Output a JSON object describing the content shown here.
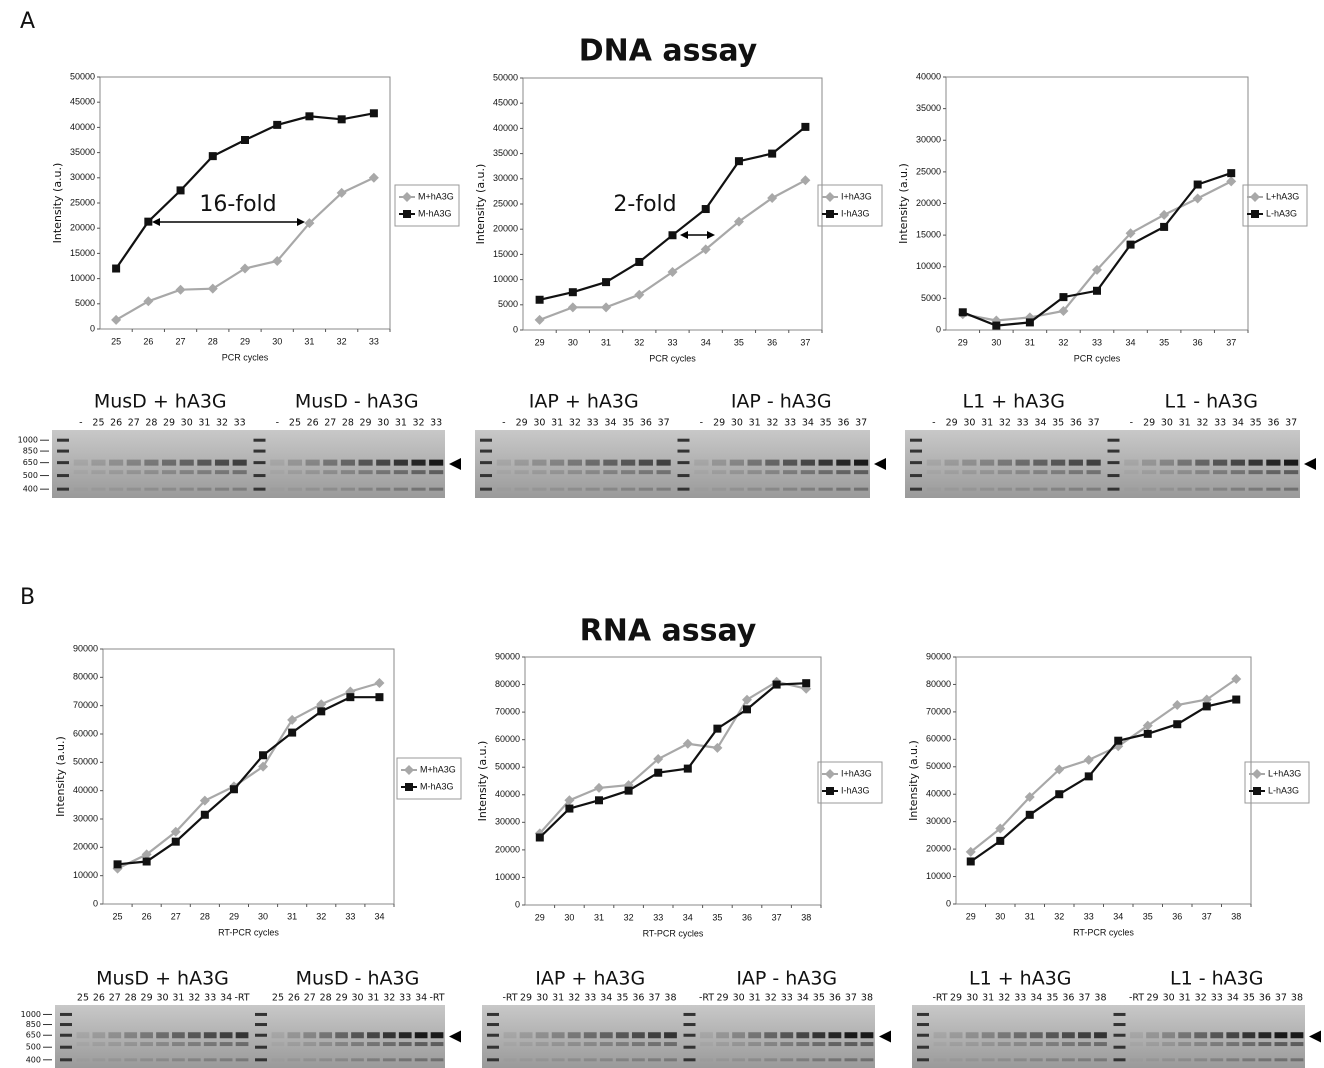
{
  "panels": [
    {
      "label": "A",
      "title": "DNA assay"
    },
    {
      "label": "B",
      "title": "RNA assay"
    }
  ],
  "chart_data": [
    {
      "type": "line",
      "categories": [
        "25",
        "26",
        "27",
        "28",
        "29",
        "30",
        "31",
        "32",
        "33"
      ],
      "x_label": "PCR cycles",
      "y_label": "Intensity (a.u.)",
      "ylim": [
        0,
        50000
      ],
      "yticks": [
        0,
        5000,
        10000,
        15000,
        20000,
        25000,
        30000,
        35000,
        40000,
        45000,
        50000
      ],
      "annotation": "16-fold",
      "series": [
        {
          "name": "M+hA3G",
          "color": "#a8a8a8",
          "marker": "diamond",
          "values": [
            1800,
            5500,
            7800,
            8000,
            12000,
            13500,
            21000,
            27000,
            30000
          ]
        },
        {
          "name": "M-hA3G",
          "color": "#111111",
          "marker": "square",
          "values": [
            12000,
            21300,
            27500,
            34300,
            37500,
            40500,
            42200,
            41600,
            42800
          ]
        }
      ]
    },
    {
      "type": "line",
      "categories": [
        "29",
        "30",
        "31",
        "32",
        "33",
        "34",
        "35",
        "36",
        "37"
      ],
      "x_label": "PCR cycles",
      "y_label": "Intensity (a.u.)",
      "ylim": [
        0,
        50000
      ],
      "yticks": [
        0,
        5000,
        10000,
        15000,
        20000,
        25000,
        30000,
        35000,
        40000,
        45000,
        50000
      ],
      "annotation": "2-fold",
      "series": [
        {
          "name": "I+hA3G",
          "color": "#a8a8a8",
          "marker": "diamond",
          "values": [
            2000,
            4500,
            4500,
            7000,
            11500,
            16000,
            21500,
            26200,
            29700
          ]
        },
        {
          "name": "I-hA3G",
          "color": "#111111",
          "marker": "square",
          "values": [
            6000,
            7500,
            9500,
            13500,
            18800,
            24000,
            33500,
            35000,
            40300
          ]
        }
      ]
    },
    {
      "type": "line",
      "categories": [
        "29",
        "30",
        "31",
        "32",
        "33",
        "34",
        "35",
        "36",
        "37"
      ],
      "x_label": "PCR cycles",
      "y_label": "Intensity (a.u.)",
      "ylim": [
        0,
        40000
      ],
      "yticks": [
        0,
        5000,
        10000,
        15000,
        20000,
        25000,
        30000,
        35000,
        40000
      ],
      "series": [
        {
          "name": "L+hA3G",
          "color": "#a8a8a8",
          "marker": "diamond",
          "values": [
            2500,
            1500,
            2000,
            3000,
            9500,
            15300,
            18200,
            20800,
            23500
          ]
        },
        {
          "name": "L-hA3G",
          "color": "#111111",
          "marker": "square",
          "values": [
            2800,
            700,
            1200,
            5200,
            6200,
            13500,
            16300,
            23000,
            24800
          ]
        }
      ]
    },
    {
      "type": "line",
      "categories": [
        "25",
        "26",
        "27",
        "28",
        "29",
        "30",
        "31",
        "32",
        "33",
        "34"
      ],
      "x_label": "RT-PCR cycles",
      "y_label": "Intensity (a.u.)",
      "ylim": [
        0,
        90000
      ],
      "yticks": [
        0,
        10000,
        20000,
        30000,
        40000,
        50000,
        60000,
        70000,
        80000,
        90000
      ],
      "series": [
        {
          "name": "M+hA3G",
          "color": "#a8a8a8",
          "marker": "diamond",
          "values": [
            12500,
            17500,
            25500,
            36500,
            41500,
            48500,
            65000,
            70500,
            75000,
            78000
          ]
        },
        {
          "name": "M-hA3G",
          "color": "#111111",
          "marker": "square",
          "values": [
            14000,
            15000,
            22000,
            31500,
            40500,
            52500,
            60500,
            68000,
            73000,
            73000
          ]
        }
      ]
    },
    {
      "type": "line",
      "categories": [
        "29",
        "30",
        "31",
        "32",
        "33",
        "34",
        "35",
        "36",
        "37",
        "38"
      ],
      "x_label": "RT-PCR cycles",
      "y_label": "Intensity (a.u.)",
      "ylim": [
        0,
        90000
      ],
      "yticks": [
        0,
        10000,
        20000,
        30000,
        40000,
        50000,
        60000,
        70000,
        80000,
        90000
      ],
      "series": [
        {
          "name": "I+hA3G",
          "color": "#a8a8a8",
          "marker": "diamond",
          "values": [
            26000,
            38000,
            42500,
            43500,
            53000,
            58500,
            57000,
            74500,
            81000,
            78500
          ]
        },
        {
          "name": "I-hA3G",
          "color": "#111111",
          "marker": "square",
          "values": [
            24500,
            35000,
            38000,
            41500,
            48000,
            49500,
            64000,
            71000,
            80000,
            80500
          ]
        }
      ]
    },
    {
      "type": "line",
      "categories": [
        "29",
        "30",
        "31",
        "32",
        "33",
        "34",
        "35",
        "36",
        "37",
        "38"
      ],
      "x_label": "RT-PCR cycles",
      "y_label": "Intensity (a.u.)",
      "ylim": [
        0,
        90000
      ],
      "yticks": [
        0,
        10000,
        20000,
        30000,
        40000,
        50000,
        60000,
        70000,
        80000,
        90000
      ],
      "series": [
        {
          "name": "L+hA3G",
          "color": "#a8a8a8",
          "marker": "diamond",
          "values": [
            19000,
            27500,
            39000,
            49000,
            52500,
            57500,
            65000,
            72500,
            74500,
            82000
          ]
        },
        {
          "name": "L-hA3G",
          "color": "#111111",
          "marker": "square",
          "values": [
            15500,
            23000,
            32500,
            40000,
            46500,
            59500,
            62000,
            65500,
            72000,
            74500
          ]
        }
      ]
    }
  ],
  "gels": [
    {
      "markers": [
        "1000",
        "850",
        "650",
        "500",
        "400"
      ],
      "groups": [
        {
          "title": "MusD + hA3G",
          "lanes": [
            "-",
            "25",
            "26",
            "27",
            "28",
            "29",
            "30",
            "31",
            "32",
            "33"
          ]
        },
        {
          "title": "MusD - hA3G",
          "lanes": [
            "-",
            "25",
            "26",
            "27",
            "28",
            "29",
            "30",
            "31",
            "32",
            "33"
          ]
        }
      ]
    },
    {
      "groups": [
        {
          "title": "IAP + hA3G",
          "lanes": [
            "-",
            "29",
            "30",
            "31",
            "32",
            "33",
            "34",
            "35",
            "36",
            "37"
          ]
        },
        {
          "title": "IAP - hA3G",
          "lanes": [
            "-",
            "29",
            "30",
            "31",
            "32",
            "33",
            "34",
            "35",
            "36",
            "37"
          ]
        }
      ]
    },
    {
      "groups": [
        {
          "title": "L1 + hA3G",
          "lanes": [
            "-",
            "29",
            "30",
            "31",
            "32",
            "33",
            "34",
            "35",
            "36",
            "37"
          ]
        },
        {
          "title": "L1 - hA3G",
          "lanes": [
            "-",
            "29",
            "30",
            "31",
            "32",
            "33",
            "34",
            "35",
            "36",
            "37"
          ]
        }
      ]
    },
    {
      "markers": [
        "1000",
        "850",
        "650",
        "500",
        "400"
      ],
      "groups": [
        {
          "title": "MusD + hA3G",
          "lanes": [
            "25",
            "26",
            "27",
            "28",
            "29",
            "30",
            "31",
            "32",
            "33",
            "34",
            "-RT"
          ]
        },
        {
          "title": "MusD - hA3G",
          "lanes": [
            "25",
            "26",
            "27",
            "28",
            "29",
            "30",
            "31",
            "32",
            "33",
            "34",
            "-RT"
          ]
        }
      ]
    },
    {
      "groups": [
        {
          "title": "IAP + hA3G",
          "lanes": [
            "-RT",
            "29",
            "30",
            "31",
            "32",
            "33",
            "34",
            "35",
            "36",
            "37",
            "38"
          ]
        },
        {
          "title": "IAP - hA3G",
          "lanes": [
            "-RT",
            "29",
            "30",
            "31",
            "32",
            "33",
            "34",
            "35",
            "36",
            "37",
            "38"
          ]
        }
      ]
    },
    {
      "groups": [
        {
          "title": "L1 + hA3G",
          "lanes": [
            "-RT",
            "29",
            "30",
            "31",
            "32",
            "33",
            "34",
            "35",
            "36",
            "37",
            "38"
          ]
        },
        {
          "title": "L1 - hA3G",
          "lanes": [
            "-RT",
            "29",
            "30",
            "31",
            "32",
            "33",
            "34",
            "35",
            "36",
            "37",
            "38"
          ]
        }
      ]
    }
  ]
}
